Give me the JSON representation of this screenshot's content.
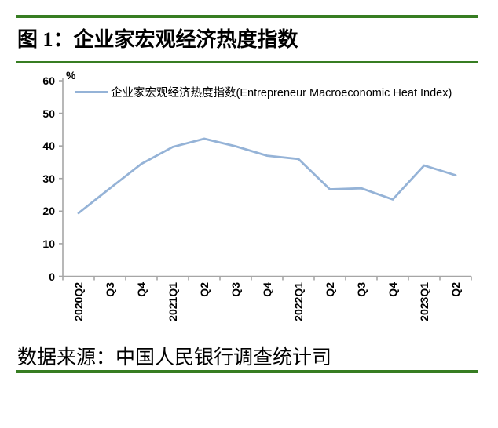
{
  "page": {
    "accent_green": "#377D22",
    "background": "#FFFFFF"
  },
  "header": {
    "title": "图 1：企业家宏观经济热度指数"
  },
  "footer": {
    "source": "数据来源：中国人民银行调查统计司"
  },
  "chart_data": {
    "type": "line",
    "legend": "企业家宏观经济热度指数(Entrepreneur  Macroeconomic Heat Index)",
    "unit_label": "%",
    "categories": [
      "2020Q2",
      "Q3",
      "Q4",
      "2021Q1",
      "Q2",
      "Q3",
      "Q4",
      "2022Q1",
      "Q2",
      "Q3",
      "Q4",
      "2023Q1",
      "Q2"
    ],
    "values": [
      19.4,
      27.0,
      34.5,
      39.7,
      42.2,
      39.9,
      37.0,
      36.0,
      26.7,
      27.0,
      23.6,
      34.0,
      31.0
    ],
    "yticks": [
      0,
      10,
      20,
      30,
      40,
      50,
      60
    ],
    "ylim": [
      0,
      60
    ],
    "grid": false,
    "legend_position": "top-left",
    "line_color": "#95B3D7",
    "axis_color": "#A6A6A6"
  }
}
